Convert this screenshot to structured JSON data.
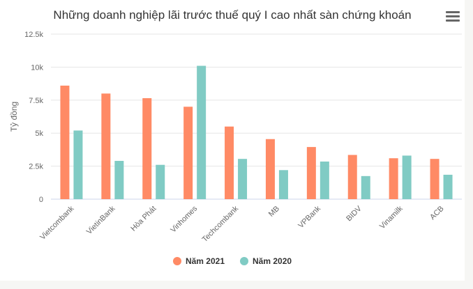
{
  "chart_data": {
    "type": "bar",
    "title": "Những doanh nghiệp lãi trước thuế quý I cao nhất sàn chứng khoán",
    "ylabel": "Tỷ đồng",
    "xlabel": "",
    "ylim": [
      0,
      12500
    ],
    "yticks": [
      0,
      2500,
      5000,
      7500,
      10000,
      12500
    ],
    "ytick_labels": [
      "0",
      "2.5k",
      "5k",
      "7.5k",
      "10k",
      "12.5k"
    ],
    "grid": true,
    "legend_position": "bottom",
    "categories": [
      "Vietcombank",
      "VietinBank",
      "Hòa Phát",
      "Vinhomes",
      "Techcombank",
      "MB",
      "VPBank",
      "BIDV",
      "Vinamilk",
      "ACB"
    ],
    "series": [
      {
        "name": "Năm 2021",
        "color": "#ff8a65",
        "values": [
          8600,
          8000,
          7650,
          7000,
          5500,
          4550,
          3950,
          3350,
          3100,
          3050
        ]
      },
      {
        "name": "Năm 2020",
        "color": "#80cbc4",
        "values": [
          5200,
          2900,
          2600,
          10100,
          3050,
          2200,
          2850,
          1750,
          3300,
          1850
        ]
      }
    ]
  }
}
